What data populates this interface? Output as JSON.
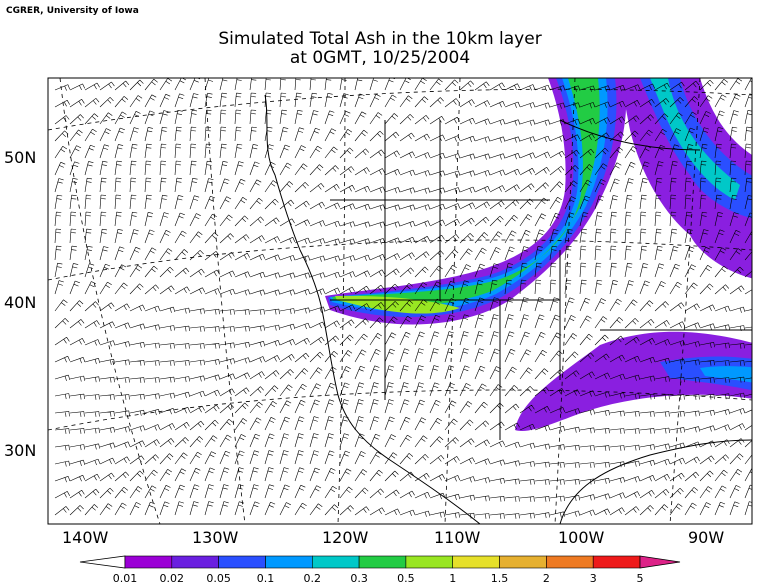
{
  "credit": "CGRER, University of Iowa",
  "title": {
    "line1": "Simulated Total Ash in the 10km layer",
    "line2": "at 0GMT, 10/25/2004"
  },
  "axes": {
    "lat_labels": [
      "50N",
      "40N",
      "30N"
    ],
    "lon_labels": [
      "140W",
      "130W",
      "120W",
      "110W",
      "100W",
      "90W"
    ]
  },
  "colorbar": {
    "colors": [
      "#9b00d6",
      "#6a1fe0",
      "#2a4fff",
      "#0099ff",
      "#00c8c8",
      "#22cc44",
      "#99e622",
      "#e6e02a",
      "#e6b030",
      "#ee7a22",
      "#ee1a1a",
      "#dd2288"
    ],
    "labels": [
      "0.01",
      "0.02",
      "0.05",
      "0.1",
      "0.2",
      "0.3",
      "0.5",
      "1",
      "1.5",
      "2",
      "3",
      "5"
    ]
  },
  "plume_colors": {
    "outer": "#8a1fe0",
    "purple": "#6a1fe0",
    "blue": "#2a4fff",
    "cyan": "#0099ff",
    "teal": "#00c8c8",
    "green": "#22cc44",
    "lime": "#99e622"
  }
}
